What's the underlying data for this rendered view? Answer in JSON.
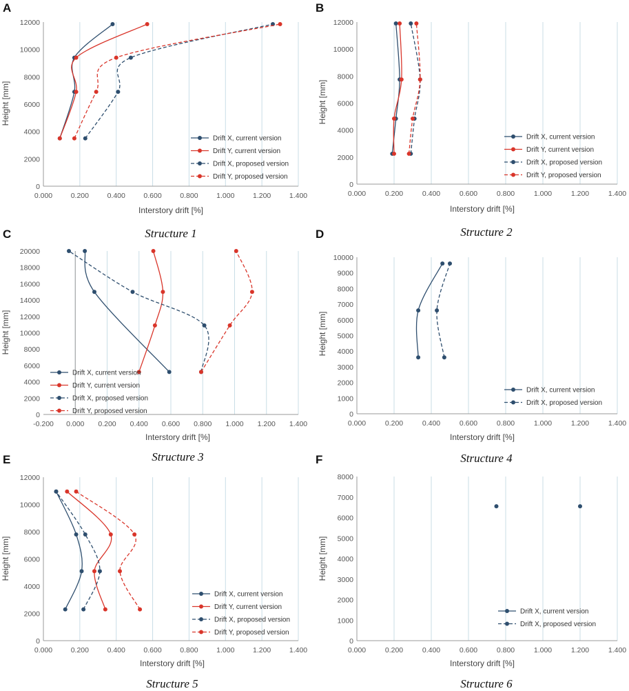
{
  "colors": {
    "x_series": "#2e4e6e",
    "y_series": "#d9352a",
    "grid": "#c8dde6",
    "axis": "#999999"
  },
  "chart_data": [
    {
      "type": "line",
      "panel": "A",
      "caption": "Structure 1",
      "xlabel": "Interstory drift [%]",
      "ylabel": "Height [mm]",
      "xlim": [
        0,
        1.4
      ],
      "ylim": [
        0,
        12000
      ],
      "xticks": [
        "0.000",
        "0.200",
        "0.400",
        "0.600",
        "0.800",
        "1.000",
        "1.200",
        "1.400"
      ],
      "yticks": [
        "0",
        "2000",
        "4000",
        "6000",
        "8000",
        "10000",
        "12000"
      ],
      "legend_position": "bottom-right",
      "series": [
        {
          "name": "Drift X, current version",
          "style": "solid",
          "color": "x",
          "points": [
            [
              0.09,
              3500
            ],
            [
              0.17,
              6900
            ],
            [
              0.17,
              9400
            ],
            [
              0.38,
              11850
            ]
          ]
        },
        {
          "name": "Drift Y, current version",
          "style": "solid",
          "color": "y",
          "points": [
            [
              0.09,
              3500
            ],
            [
              0.18,
              6900
            ],
            [
              0.18,
              9400
            ],
            [
              0.57,
              11850
            ]
          ]
        },
        {
          "name": "Drift X, proposed version",
          "style": "dashed",
          "color": "x",
          "points": [
            [
              0.23,
              3500
            ],
            [
              0.41,
              6900
            ],
            [
              0.48,
              9400
            ],
            [
              1.26,
              11850
            ]
          ]
        },
        {
          "name": "Drift Y, proposed version",
          "style": "dashed",
          "color": "y",
          "points": [
            [
              0.17,
              3500
            ],
            [
              0.29,
              6900
            ],
            [
              0.4,
              9400
            ],
            [
              1.3,
              11850
            ]
          ]
        }
      ]
    },
    {
      "type": "line",
      "panel": "B",
      "caption": "Structure 2",
      "xlabel": "Interstory drift [%]",
      "ylabel": "Height [mm]",
      "xlim": [
        0,
        1.4
      ],
      "ylim": [
        0,
        12000
      ],
      "xticks": [
        "0.000",
        "0.200",
        "0.400",
        "0.600",
        "0.800",
        "1.000",
        "1.200",
        "1.400"
      ],
      "yticks": [
        "0",
        "2000",
        "4000",
        "6000",
        "8000",
        "10000",
        "12000"
      ],
      "legend_position": "bottom-right",
      "series": [
        {
          "name": "Drift X, current version",
          "style": "solid",
          "color": "x",
          "points": [
            [
              0.19,
              2250
            ],
            [
              0.21,
              4850
            ],
            [
              0.23,
              7750
            ],
            [
              0.21,
              11900
            ]
          ]
        },
        {
          "name": "Drift Y, current version",
          "style": "solid",
          "color": "y",
          "points": [
            [
              0.2,
              2250
            ],
            [
              0.2,
              4850
            ],
            [
              0.24,
              7750
            ],
            [
              0.23,
              11900
            ]
          ]
        },
        {
          "name": "Drift X, proposed version",
          "style": "dashed",
          "color": "x",
          "points": [
            [
              0.29,
              2250
            ],
            [
              0.31,
              4850
            ],
            [
              0.34,
              7750
            ],
            [
              0.29,
              11900
            ]
          ]
        },
        {
          "name": "Drift Y, proposed version",
          "style": "dashed",
          "color": "y",
          "points": [
            [
              0.28,
              2250
            ],
            [
              0.3,
              4850
            ],
            [
              0.34,
              7750
            ],
            [
              0.32,
              11900
            ]
          ]
        }
      ]
    },
    {
      "type": "line",
      "panel": "C",
      "caption": "Structure 3",
      "xlabel": "Interstory drift [%]",
      "ylabel": "Height [mm]",
      "xlim": [
        -0.2,
        1.4
      ],
      "ylim": [
        0,
        20000
      ],
      "xticks": [
        "-0.200",
        "0.000",
        "0.200",
        "0.400",
        "0.600",
        "0.800",
        "1.000",
        "1.200",
        "1.400"
      ],
      "yticks": [
        "0",
        "2000",
        "4000",
        "6000",
        "8000",
        "10000",
        "12000",
        "14000",
        "16000",
        "18000",
        "20000"
      ],
      "legend_position": "bottom-left",
      "series": [
        {
          "name": "Drift X, current version",
          "style": "solid",
          "color": "x",
          "points": [
            [
              0.59,
              5200
            ],
            [
              0.12,
              15000
            ],
            [
              0.06,
              20000
            ]
          ]
        },
        {
          "name": "Drift Y, current version",
          "style": "solid",
          "color": "y",
          "points": [
            [
              0.4,
              5200
            ],
            [
              0.5,
              10900
            ],
            [
              0.55,
              15000
            ],
            [
              0.49,
              20000
            ]
          ]
        },
        {
          "name": "Drift X, proposed version",
          "style": "dashed",
          "color": "x",
          "points": [
            [
              0.79,
              5200
            ],
            [
              0.81,
              10900
            ],
            [
              0.36,
              15000
            ],
            [
              -0.04,
              20000
            ]
          ]
        },
        {
          "name": "Drift Y, proposed version",
          "style": "dashed",
          "color": "y",
          "points": [
            [
              0.79,
              5200
            ],
            [
              0.97,
              10900
            ],
            [
              1.11,
              15000
            ],
            [
              1.01,
              20000
            ]
          ]
        }
      ]
    },
    {
      "type": "line",
      "panel": "D",
      "caption": "Structure 4",
      "xlabel": "Interstory drift [%]",
      "ylabel": "Height [mm]",
      "xlim": [
        0,
        1.4
      ],
      "ylim": [
        0,
        10000
      ],
      "xticks": [
        "0.000",
        "0.200",
        "0.400",
        "0.600",
        "0.800",
        "1.000",
        "1.200",
        "1.400"
      ],
      "yticks": [
        "0",
        "1000",
        "2000",
        "3000",
        "4000",
        "5000",
        "6000",
        "7000",
        "8000",
        "9000",
        "10000"
      ],
      "legend_position": "bottom-right",
      "series": [
        {
          "name": "Drift X, current version",
          "style": "solid",
          "color": "x",
          "points": [
            [
              0.33,
              3600
            ],
            [
              0.33,
              6600
            ],
            [
              0.46,
              9600
            ]
          ]
        },
        {
          "name": "Drift X, proposed version",
          "style": "dashed",
          "color": "x",
          "points": [
            [
              0.47,
              3600
            ],
            [
              0.43,
              6600
            ],
            [
              0.5,
              9600
            ]
          ]
        }
      ]
    },
    {
      "type": "line",
      "panel": "E",
      "caption": "Structure 5",
      "xlabel": "Interstory drift [%]",
      "ylabel": "Height [mm]",
      "xlim": [
        0,
        1.4
      ],
      "ylim": [
        0,
        12000
      ],
      "xticks": [
        "0.000",
        "0.200",
        "0.400",
        "0.600",
        "0.800",
        "1.000",
        "1.200",
        "1.400"
      ],
      "yticks": [
        "0",
        "2000",
        "4000",
        "6000",
        "8000",
        "10000",
        "12000"
      ],
      "legend_position": "bottom-right",
      "series": [
        {
          "name": "Drift X, current version",
          "style": "solid",
          "color": "x",
          "points": [
            [
              0.12,
              2300
            ],
            [
              0.21,
              5100
            ],
            [
              0.18,
              7800
            ],
            [
              0.07,
              10950
            ]
          ]
        },
        {
          "name": "Drift Y, current version",
          "style": "solid",
          "color": "y",
          "points": [
            [
              0.34,
              2300
            ],
            [
              0.28,
              5100
            ],
            [
              0.37,
              7800
            ],
            [
              0.13,
              10950
            ]
          ]
        },
        {
          "name": "Drift X, proposed version",
          "style": "dashed",
          "color": "x",
          "points": [
            [
              0.22,
              2300
            ],
            [
              0.31,
              5100
            ],
            [
              0.23,
              7800
            ],
            [
              0.07,
              10950
            ]
          ]
        },
        {
          "name": "Drift Y, proposed version",
          "style": "dashed",
          "color": "y",
          "points": [
            [
              0.53,
              2300
            ],
            [
              0.42,
              5100
            ],
            [
              0.5,
              7800
            ],
            [
              0.18,
              10950
            ]
          ]
        }
      ]
    },
    {
      "type": "line",
      "panel": "F",
      "caption": "Structure 6",
      "xlabel": "Interstory drift [%]",
      "ylabel": "Height [mm]",
      "xlim": [
        0,
        1.4
      ],
      "ylim": [
        0,
        8000
      ],
      "xticks": [
        "0.000",
        "0.200",
        "0.400",
        "0.600",
        "0.800",
        "1.000",
        "1.200",
        "1.400"
      ],
      "yticks": [
        "0",
        "1000",
        "2000",
        "3000",
        "4000",
        "5000",
        "6000",
        "7000",
        "8000"
      ],
      "legend_position": "bottom-right",
      "series": [
        {
          "name": "Drift X, current version",
          "style": "solid",
          "color": "x",
          "points": [
            [
              0.75,
              6550
            ]
          ]
        },
        {
          "name": "Drift X, proposed version",
          "style": "dashed",
          "color": "x",
          "points": [
            [
              1.2,
              6550
            ]
          ]
        }
      ]
    }
  ]
}
